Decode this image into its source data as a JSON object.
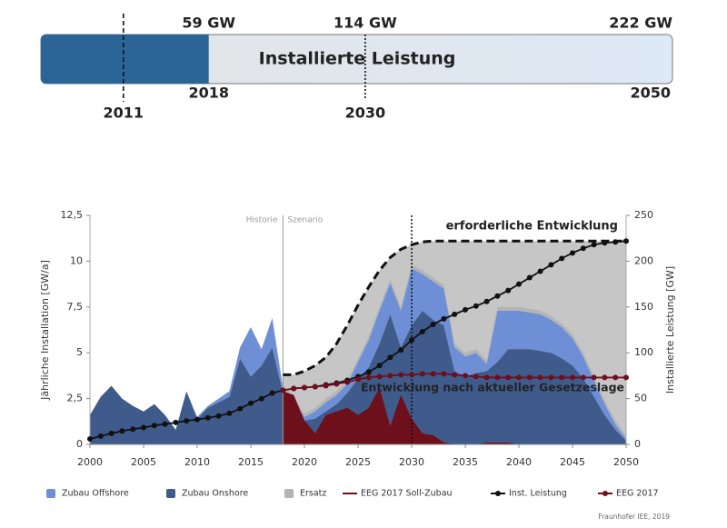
{
  "chart_data": [
    {
      "type": "progress",
      "title": "Installierte Leistung",
      "xlim": [
        0,
        222
      ],
      "value": 59,
      "color": "#2b6597",
      "markers": [
        {
          "year": "2011",
          "value": 29,
          "style": "dashed"
        },
        {
          "year": "2018",
          "value": 59,
          "label": "59 GW"
        },
        {
          "year": "2030",
          "value": 114,
          "label": "114 GW",
          "style": "dotted"
        },
        {
          "year": "2050",
          "value": 222,
          "label": "222 GW"
        }
      ]
    },
    {
      "type": "area_line",
      "x": [
        2000,
        2001,
        2002,
        2003,
        2004,
        2005,
        2006,
        2007,
        2008,
        2009,
        2010,
        2011,
        2012,
        2013,
        2014,
        2015,
        2016,
        2017,
        2018,
        2019,
        2020,
        2021,
        2022,
        2023,
        2024,
        2025,
        2026,
        2027,
        2028,
        2029,
        2030,
        2031,
        2032,
        2033,
        2034,
        2035,
        2036,
        2037,
        2038,
        2039,
        2040,
        2041,
        2042,
        2043,
        2044,
        2045,
        2046,
        2047,
        2048,
        2049,
        2050
      ],
      "xlim": [
        2000,
        2050
      ],
      "xticks": [
        2000,
        2005,
        2010,
        2015,
        2020,
        2025,
        2030,
        2035,
        2040,
        2045,
        2050
      ],
      "ylim": [
        0,
        12.5
      ],
      "yticks": [
        0,
        {
          "value": 2.5,
          "label": "2,5"
        },
        5,
        {
          "value": 7.5,
          "label": "7,5"
        },
        10,
        {
          "value": 12.5,
          "label": "12,5"
        }
      ],
      "y2lim": [
        0,
        250
      ],
      "y2ticks": [
        0,
        50,
        100,
        150,
        200,
        250
      ],
      "ylabel": "Jährliche Installation [GW/a]",
      "y2label": "Installierte Leistung [GW]",
      "vlines": [
        {
          "x": 2018,
          "style": "solid"
        },
        {
          "x": 2030,
          "style": "dotted"
        }
      ],
      "phase_labels": [
        "Historie",
        "Szenario"
      ],
      "annotations": [
        {
          "text": "erforderliche Entwicklung",
          "color": "#111111"
        },
        {
          "text": "Entwicklung nach aktueller Gesetzeslage",
          "color": "#6e0f1c"
        }
      ],
      "source": "Fraunhofer IEE, 2019",
      "series": [
        {
          "name": "Zubau Offshore",
          "type": "area",
          "stack": 1,
          "color": "#6e8fd6",
          "values": [
            0,
            0,
            0,
            0,
            0,
            0,
            0,
            0,
            0,
            0,
            0.1,
            0.1,
            0.2,
            0.3,
            0.6,
            2.7,
            0.9,
            1.6,
            0.2,
            0.5,
            0.2,
            0.4,
            0.5,
            0.5,
            0.5,
            0.9,
            1.5,
            1.8,
            1.7,
            2.0,
            3.1,
            2.0,
            2.1,
            2.0,
            1.3,
            1.1,
            1.1,
            0.4,
            2.8,
            2.1,
            2.1,
            2.0,
            2.0,
            1.8,
            1.7,
            1.5,
            1.2,
            0.9,
            0.6,
            0.3,
            0.1
          ]
        },
        {
          "name": "Zubau Onshore",
          "type": "area",
          "stack": 0,
          "color": "#3f5b8c",
          "values": [
            1.6,
            2.6,
            3.2,
            2.5,
            2.1,
            1.8,
            2.2,
            1.6,
            0.8,
            2.9,
            1.4,
            2.0,
            2.3,
            2.6,
            4.7,
            3.7,
            4.3,
            5.3,
            2.8,
            1.9,
            1.3,
            1.4,
            1.8,
            2.2,
            2.8,
            3.6,
            4.2,
            5.5,
            7.1,
            5.3,
            6.5,
            7.3,
            6.8,
            6.5,
            4.0,
            3.7,
            3.9,
            4.0,
            4.5,
            5.2,
            5.2,
            5.2,
            5.1,
            5.0,
            4.7,
            4.3,
            3.6,
            2.6,
            1.6,
            0.8,
            0.2
          ]
        },
        {
          "name": "Ersatz",
          "type": "area",
          "stack": 2,
          "color": "#b4b4b4",
          "values": [
            0,
            0,
            0,
            0,
            0,
            0,
            0,
            0,
            0,
            0,
            0,
            0,
            0,
            0,
            0,
            0,
            0,
            0,
            0.2,
            0.2,
            0.2,
            0.2,
            0.2,
            0.2,
            0.2,
            0.2,
            0.2,
            0.2,
            0.2,
            0.2,
            0.2,
            0.2,
            0.2,
            0.2,
            0.2,
            0.2,
            0.2,
            0.2,
            0.2,
            0.2,
            0.2,
            0.2,
            0.2,
            0.2,
            0.2,
            0.2,
            0.2,
            0.2,
            0.2,
            0.2,
            0.2
          ]
        },
        {
          "name": "EEG 2017 Soll-Zubau",
          "type": "area",
          "color": "#6e0f1c",
          "legend_symbol": "line",
          "values": [
            null,
            null,
            null,
            null,
            null,
            null,
            null,
            null,
            null,
            null,
            null,
            null,
            null,
            null,
            null,
            null,
            null,
            null,
            2.9,
            2.7,
            1.3,
            0.6,
            1.6,
            1.8,
            2.0,
            1.6,
            2.0,
            3.1,
            1.0,
            2.7,
            1.4,
            0.6,
            0.5,
            0.1,
            0,
            0,
            0,
            0.1,
            0.1,
            0.1,
            0,
            0,
            0,
            0,
            0,
            0,
            0,
            0,
            0,
            0,
            0
          ]
        },
        {
          "name": "Inst. Leistung",
          "type": "line",
          "axis": "y2",
          "color": "#111111",
          "marker": true,
          "values": [
            6,
            9,
            12,
            14.6,
            16.6,
            18.4,
            20.6,
            22.2,
            23.9,
            25.7,
            27.2,
            29,
            31,
            34,
            39,
            45,
            50,
            56,
            59,
            61,
            62,
            63,
            65,
            67,
            70,
            74,
            79,
            86,
            95,
            103,
            114,
            123,
            131,
            137,
            142,
            147,
            151,
            156,
            162,
            168,
            175,
            182,
            189,
            196,
            203,
            209,
            214,
            218,
            220,
            221,
            222
          ]
        },
        {
          "name": "EEG 2017",
          "type": "line",
          "axis": "y2",
          "color": "#6e0f1c",
          "marker": true,
          "values": [
            null,
            null,
            null,
            null,
            null,
            null,
            null,
            null,
            null,
            null,
            null,
            null,
            null,
            null,
            null,
            null,
            null,
            null,
            59,
            61,
            62,
            63,
            64,
            66,
            68,
            71,
            73,
            74,
            75,
            76,
            76,
            77,
            77,
            77,
            76,
            75,
            74,
            73,
            73,
            73,
            73,
            73,
            73,
            73,
            73,
            73,
            73,
            73,
            73,
            73,
            73
          ]
        },
        {
          "name": "erforderliche Entwicklung",
          "type": "line",
          "axis": "y2",
          "color": "#111111",
          "dashed": true,
          "fill": "#c6c6c6",
          "legend": false,
          "values": [
            null,
            null,
            null,
            null,
            null,
            null,
            null,
            null,
            null,
            null,
            null,
            null,
            null,
            null,
            null,
            null,
            null,
            null,
            76,
            76,
            80,
            86,
            95,
            110,
            130,
            152,
            172,
            190,
            204,
            213,
            218,
            221,
            222,
            222,
            222,
            222,
            222,
            222,
            222,
            222,
            222,
            222,
            222,
            222,
            222,
            222,
            222,
            222,
            222,
            222,
            222
          ]
        }
      ]
    }
  ]
}
